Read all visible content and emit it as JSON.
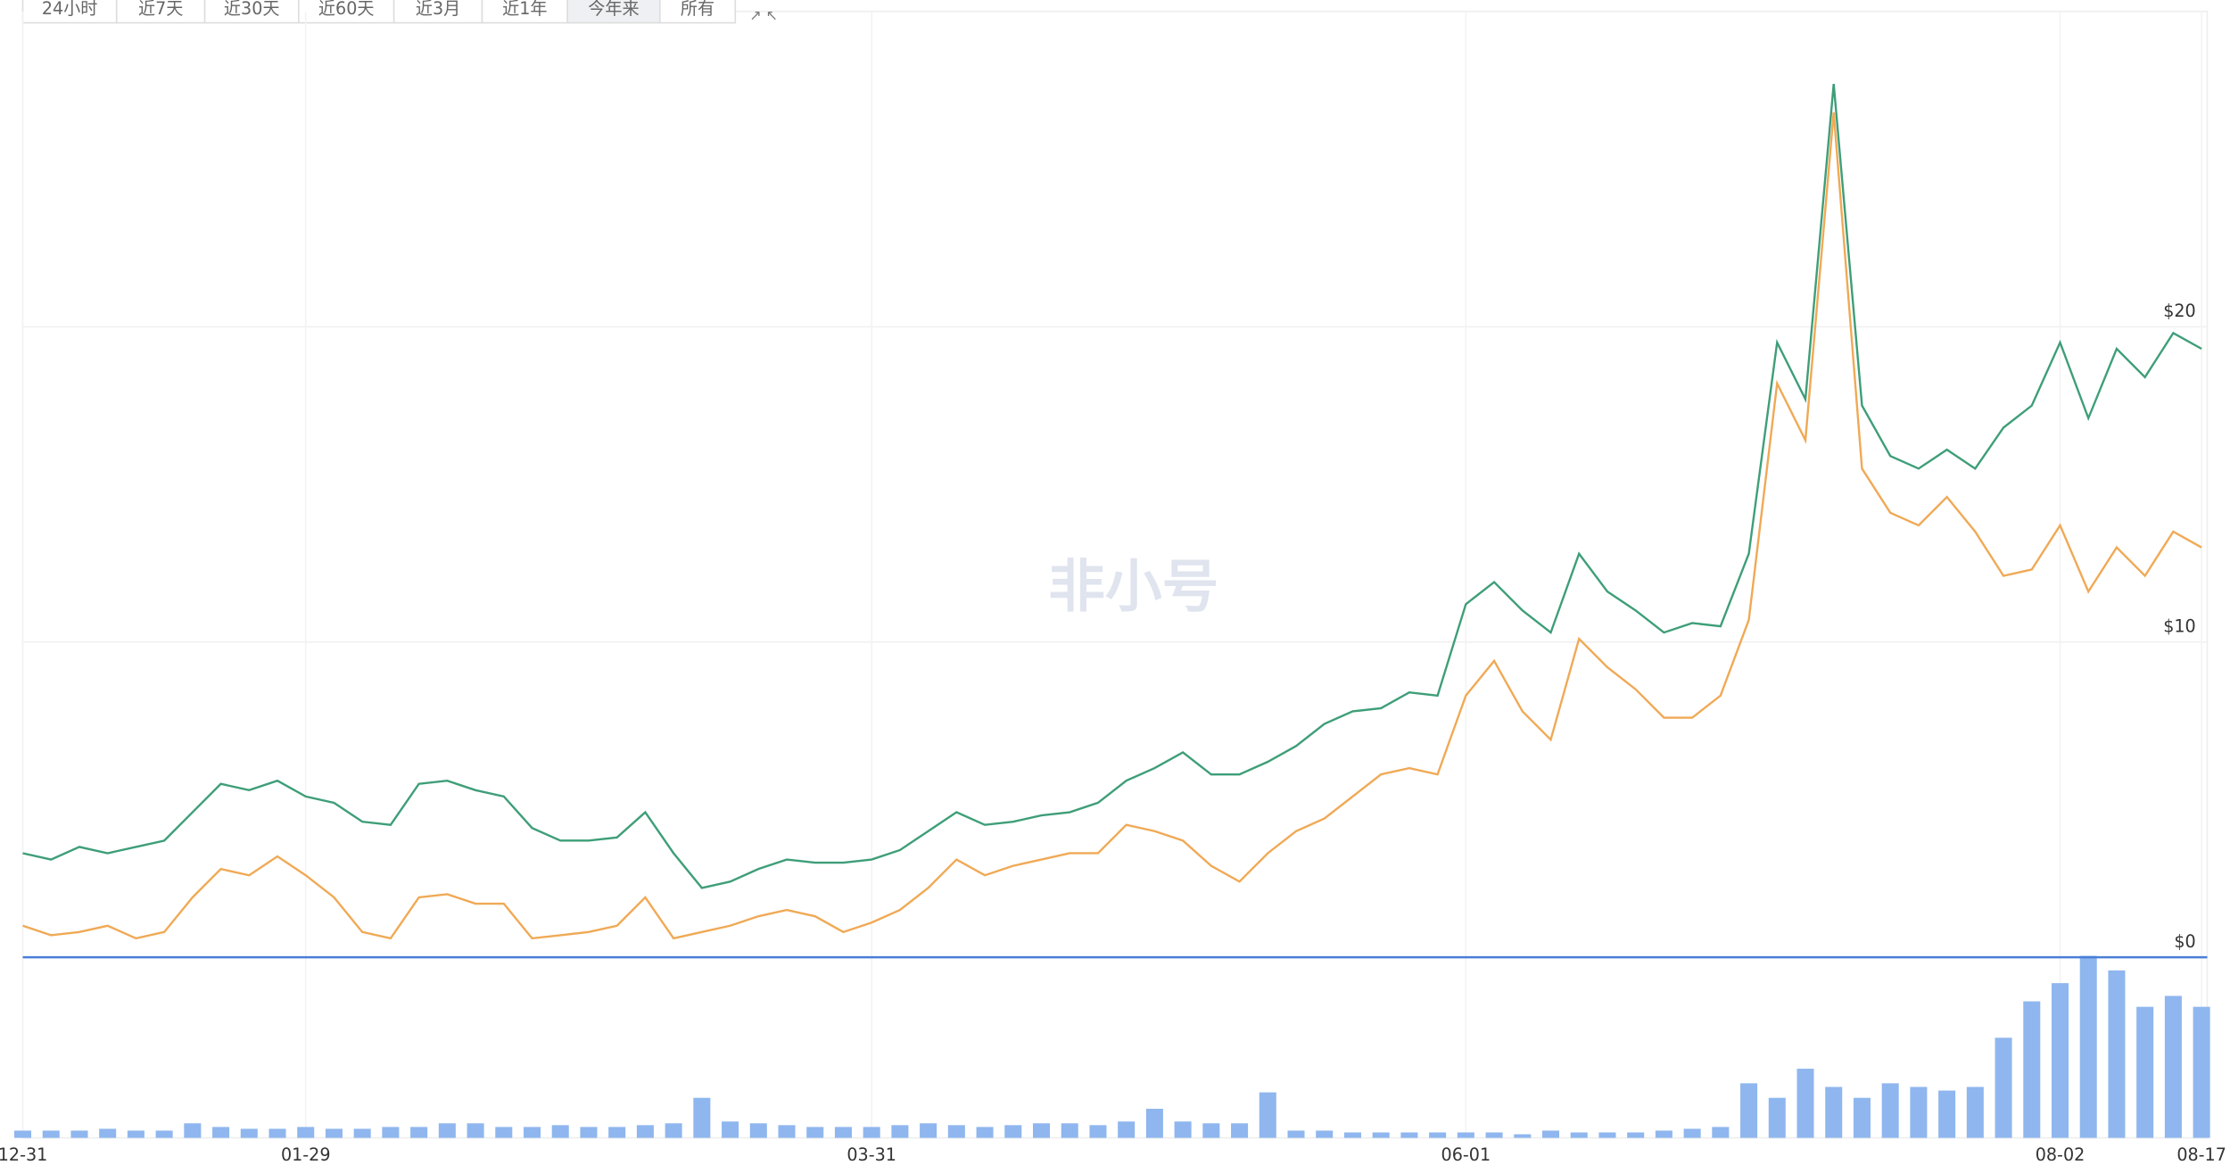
{
  "toolbar": {
    "buttons": [
      "24小时",
      "近7天",
      "近30天",
      "近60天",
      "近3月",
      "近1年",
      "今年来",
      "所有"
    ],
    "active": 6
  },
  "watermark": "非小号",
  "chart_data": {
    "type": "line",
    "categories": [
      "12-31",
      null,
      null,
      null,
      null,
      null,
      null,
      null,
      null,
      null,
      "01-29",
      null,
      null,
      null,
      null,
      null,
      null,
      null,
      null,
      null,
      null,
      null,
      null,
      null,
      null,
      null,
      null,
      null,
      null,
      null,
      "03-31",
      null,
      null,
      null,
      null,
      null,
      null,
      null,
      null,
      null,
      null,
      null,
      null,
      null,
      null,
      null,
      null,
      null,
      null,
      null,
      null,
      "06-01",
      null,
      null,
      null,
      null,
      null,
      null,
      null,
      null,
      null,
      null,
      null,
      null,
      null,
      null,
      null,
      null,
      null,
      null,
      null,
      null,
      "08-02",
      null,
      null,
      null,
      null,
      "08-17"
    ],
    "series": [
      {
        "name": "green",
        "color": "#3e9e78",
        "values": [
          3.3,
          3.1,
          3.5,
          3.3,
          3.5,
          3.7,
          4.6,
          5.5,
          5.3,
          5.6,
          5.1,
          4.9,
          4.3,
          4.2,
          5.5,
          5.6,
          5.3,
          5.1,
          4.1,
          3.7,
          3.7,
          3.8,
          4.6,
          3.3,
          2.2,
          2.4,
          2.8,
          3.1,
          3.0,
          3.0,
          3.1,
          3.4,
          4.0,
          4.6,
          4.2,
          4.3,
          4.5,
          4.6,
          4.9,
          5.6,
          6.0,
          6.5,
          5.8,
          5.8,
          6.2,
          6.7,
          7.4,
          7.8,
          7.9,
          8.4,
          8.3,
          11.2,
          11.9,
          11.0,
          10.3,
          12.8,
          11.6,
          11.0,
          10.3,
          10.6,
          10.5,
          12.8,
          19.5,
          17.7,
          27.7,
          17.5,
          15.9,
          15.5,
          16.1,
          15.5,
          16.8,
          17.5,
          19.5,
          17.1,
          19.3,
          18.4,
          19.8,
          19.3
        ]
      },
      {
        "name": "orange",
        "color": "#f0a955",
        "values": [
          1.0,
          0.7,
          0.8,
          1.0,
          0.6,
          0.8,
          1.9,
          2.8,
          2.6,
          3.2,
          2.6,
          1.9,
          0.8,
          0.6,
          1.9,
          2.0,
          1.7,
          1.7,
          0.6,
          0.7,
          0.8,
          1.0,
          1.9,
          0.6,
          0.8,
          1.0,
          1.3,
          1.5,
          1.3,
          0.8,
          1.1,
          1.5,
          2.2,
          3.1,
          2.6,
          2.9,
          3.1,
          3.3,
          3.3,
          4.2,
          4.0,
          3.7,
          2.9,
          2.4,
          3.3,
          4.0,
          4.4,
          5.1,
          5.8,
          6.0,
          5.8,
          8.3,
          9.4,
          7.8,
          6.9,
          10.1,
          9.2,
          8.5,
          7.6,
          7.6,
          8.3,
          10.7,
          18.2,
          16.4,
          26.8,
          15.5,
          14.1,
          13.7,
          14.6,
          13.5,
          12.1,
          12.3,
          13.7,
          11.6,
          13.0,
          12.1,
          13.5,
          13.0
        ]
      }
    ],
    "volume": {
      "color": "#8fb6ee",
      "values": [
        4,
        4,
        4,
        5,
        4,
        4,
        8,
        6,
        5,
        5,
        6,
        5,
        5,
        6,
        6,
        8,
        8,
        6,
        6,
        7,
        6,
        6,
        7,
        8,
        22,
        9,
        8,
        7,
        6,
        6,
        6,
        7,
        8,
        7,
        6,
        7,
        8,
        8,
        7,
        9,
        16,
        9,
        8,
        8,
        25,
        4,
        4,
        3,
        3,
        3,
        3,
        3,
        3,
        2,
        4,
        3,
        3,
        3,
        4,
        5,
        6,
        30,
        22,
        38,
        28,
        22,
        30,
        28,
        26,
        28,
        55,
        75,
        85,
        100,
        92,
        72,
        78,
        72
      ]
    },
    "ylim": [
      0,
      30
    ],
    "yticks": [
      {
        "value": 0,
        "label": "$0"
      },
      {
        "value": 10,
        "label": "$10"
      },
      {
        "value": 20,
        "label": "$20"
      }
    ],
    "grid": true
  }
}
